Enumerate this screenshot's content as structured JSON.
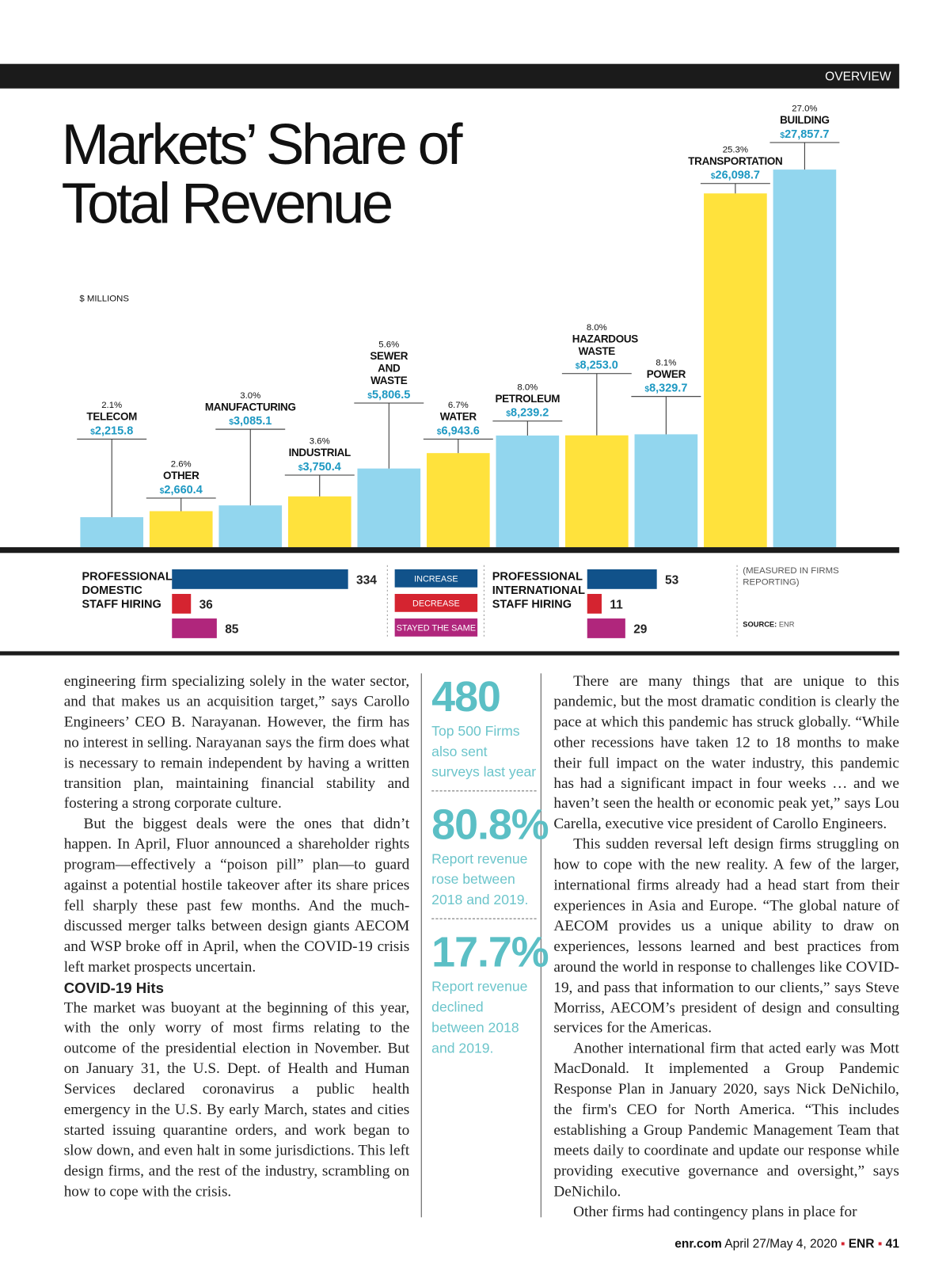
{
  "header": {
    "section": "OVERVIEW"
  },
  "chart_data": [
    {
      "type": "bar",
      "title": "Markets’ Share of Total Revenue",
      "y_label": "$ MILLIONS",
      "categories": [
        "TELECOM",
        "OTHER",
        "MANUFACTURING",
        "INDUSTRIAL",
        "SEWER AND WASTE",
        "WATER",
        "PETROLEUM",
        "HAZARDOUS WASTE",
        "POWER",
        "TRANSPORTATION",
        "BUILDING"
      ],
      "share_labels": [
        "2.1%",
        "2.6%",
        "3.0%",
        "3.6%",
        "5.6%",
        "6.7%",
        "8.0%",
        "8.0%",
        "8.1%",
        "25.3%",
        "27.0%"
      ],
      "values": [
        2215.8,
        2660.4,
        3085.1,
        3750.4,
        5806.5,
        6943.6,
        8239.2,
        8253.0,
        8329.7,
        26098.7,
        27857.7
      ],
      "value_labels": [
        "$2,215.8",
        "$2,660.4",
        "$3,085.1",
        "$3,750.4",
        "$5,806.5",
        "$6,943.6",
        "$8,239.2",
        "$8,253.0",
        "$8,329.7",
        "$26,098.7",
        "$27,857.7"
      ],
      "colors": [
        "#92d6ee",
        "#ffe23c",
        "#92d6ee",
        "#ffe23c",
        "#92d6ee",
        "#ffe23c",
        "#92d6ee",
        "#ffe23c",
        "#92d6ee",
        "#ffe23c",
        "#92d6ee"
      ]
    },
    {
      "type": "hbar",
      "legend": [
        "INCREASE",
        "DECREASE",
        "STAYED THE SAME"
      ],
      "colors": [
        "#11528a",
        "#d52430",
        "#b0267c"
      ],
      "panels": [
        {
          "label": "PROFESSIONAL DOMESTIC STAFF HIRING",
          "values": [
            334,
            36,
            85
          ]
        },
        {
          "label": "PROFESSIONAL INTERNATIONAL STAFF HIRING",
          "values": [
            53,
            11,
            29
          ]
        }
      ],
      "note": "(MEASURED IN FIRMS REPORTING)",
      "source_label": "SOURCE:",
      "source": "ENR"
    }
  ],
  "body": {
    "left": [
      "engineering firm specializing solely in the water sector, and that makes us an acquisition target,” says Carollo Engineers’ CEO B. Narayanan. However, the firm has no interest in selling. Narayanan says the firm does what is necessary to remain independent by having a written transition plan, maintaining financial stability and fostering a strong corporate culture.",
      "But the biggest deals were the ones that didn’t happen. In April, Fluor announced a shareholder rights program—effectively a “poison pill” plan—to guard against a potential hostile takeover after its share prices fell sharply these past few months. And the much-discussed merger talks between design giants AECOM and WSP broke off in April, when the COVID-19 crisis left market prospects uncertain."
    ],
    "heading": "COVID-19 Hits",
    "left_after": "The market was buoyant at the beginning of this year, with the only worry of most firms relating to the outcome of the presidential election in November. But on January 31, the U.S. Dept. of Health and Human Services declared coronavirus a public health emergency in the U.S. By early March, states and cities started issuing quarantine orders, and work began to slow down, and even halt in some jurisdictions. This left design firms, and the rest of the industry, scrambling on how to cope with the crisis.",
    "right": [
      "There are many things that are unique to this pandemic, but the most dramatic condition is clearly the pace at which this pandemic has struck globally. “While other recessions have taken 12 to 18 months to make their full impact on the water industry, this pandemic has had a significant impact in four weeks … and we haven’t seen the health or economic peak yet,” says Lou Carella, executive vice president of Carollo Engineers.",
      "This sudden reversal left design firms struggling on how to cope with the new reality. A few of the larger, international firms already had a head start from their experiences in Asia and Europe. “The global nature of AECOM provides us a unique ability to draw on experiences, lessons learned and best practices from around the world in response to challenges like COVID-19, and pass that information to our clients,” says Steve Morriss, AECOM’s president of design and consulting services for the Americas.",
      "Another international firm that acted early was Mott MacDonald. It implemented a Group Pandemic Response Plan in January 2020, says Nick DeNichilo, the firm's CEO for North America. “This includes establishing a Group Pandemic Management Team that meets daily to coordinate and update our response while providing executive governance and oversight,” says DeNichilo.",
      "Other firms had contingency plans in place for"
    ]
  },
  "sidebar": [
    {
      "stat": "480",
      "text": "Top 500 Firms also sent surveys last year"
    },
    {
      "stat": "80.8%",
      "text": "Report revenue rose between 2018 and 2019."
    },
    {
      "stat": "17.7%",
      "text": "Report revenue declined between 2018 and 2019."
    }
  ],
  "footer": {
    "site": "enr.com",
    "date": "April 27/May 4, 2020",
    "brand": "ENR",
    "page": "41"
  }
}
